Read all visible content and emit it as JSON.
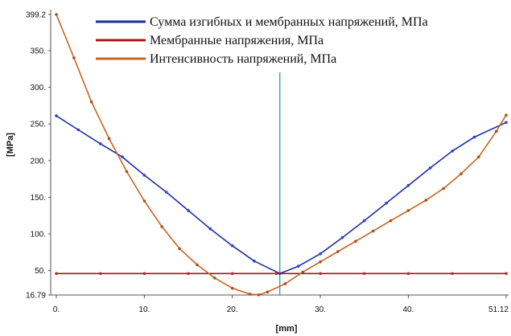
{
  "chart_data": {
    "type": "line",
    "xlabel": "[mm]",
    "ylabel": "[MPa]",
    "xlim": [
      0,
      51.12
    ],
    "ylim": [
      16.79,
      399.2
    ],
    "x_ticks": [
      {
        "value": 0,
        "label": "0."
      },
      {
        "value": 10,
        "label": "10."
      },
      {
        "value": 20,
        "label": "20."
      },
      {
        "value": 30,
        "label": "30."
      },
      {
        "value": 40,
        "label": "40."
      },
      {
        "value": 51.12,
        "label": "51.12"
      }
    ],
    "y_ticks": [
      {
        "value": 16.79,
        "label": "16.79"
      },
      {
        "value": 50,
        "label": "50."
      },
      {
        "value": 100,
        "label": "100."
      },
      {
        "value": 150,
        "label": "150."
      },
      {
        "value": 200,
        "label": "200."
      },
      {
        "value": 250,
        "label": "250."
      },
      {
        "value": 300,
        "label": "300."
      },
      {
        "value": 350,
        "label": "350."
      },
      {
        "value": 399.2,
        "label": "399.2"
      }
    ],
    "cursor_x": 25.4,
    "grid": false,
    "legend_position": "top-right",
    "series": [
      {
        "name": "Сумма изгибных и мембранных напряжений, МПа",
        "color": "#1f2f9e",
        "marker_color": "#2a3fd0",
        "points": [
          [
            0,
            261
          ],
          [
            2.5,
            242
          ],
          [
            5,
            223
          ],
          [
            7.5,
            205
          ],
          [
            10,
            180
          ],
          [
            12.5,
            157
          ],
          [
            15,
            132
          ],
          [
            17.5,
            107
          ],
          [
            20,
            84
          ],
          [
            22.5,
            63
          ],
          [
            25.4,
            46
          ],
          [
            27.5,
            56
          ],
          [
            30,
            73
          ],
          [
            32.5,
            95
          ],
          [
            35,
            118
          ],
          [
            37.5,
            142
          ],
          [
            40,
            166
          ],
          [
            42.5,
            190
          ],
          [
            45,
            213
          ],
          [
            47.5,
            232
          ],
          [
            51.12,
            252
          ]
        ]
      },
      {
        "name": "Мембранные напряжения, МПа",
        "color": "#a81414",
        "marker_color": "#cc2222",
        "points": [
          [
            0,
            46
          ],
          [
            5,
            46
          ],
          [
            10,
            46
          ],
          [
            15,
            46
          ],
          [
            20,
            46
          ],
          [
            25,
            46
          ],
          [
            30,
            46
          ],
          [
            35,
            46
          ],
          [
            40,
            46
          ],
          [
            45,
            46
          ],
          [
            51.12,
            46
          ]
        ]
      },
      {
        "name": "Интенсивность напряжений, МПа",
        "color": "#c8641e",
        "marker_color": "#a8501a",
        "points": [
          [
            0,
            399.2
          ],
          [
            2,
            340
          ],
          [
            4,
            280
          ],
          [
            6,
            230
          ],
          [
            8,
            185
          ],
          [
            10,
            145
          ],
          [
            12,
            110
          ],
          [
            14,
            80
          ],
          [
            16,
            58
          ],
          [
            18,
            40
          ],
          [
            20,
            26
          ],
          [
            22,
            18
          ],
          [
            23,
            17
          ],
          [
            24,
            21
          ],
          [
            26,
            32
          ],
          [
            28,
            48
          ],
          [
            30,
            62
          ],
          [
            32,
            76
          ],
          [
            34,
            90
          ],
          [
            36,
            104
          ],
          [
            38,
            118
          ],
          [
            40,
            132
          ],
          [
            42,
            146
          ],
          [
            44,
            162
          ],
          [
            46,
            182
          ],
          [
            48,
            205
          ],
          [
            50,
            240
          ],
          [
            51.12,
            262
          ]
        ]
      }
    ]
  }
}
